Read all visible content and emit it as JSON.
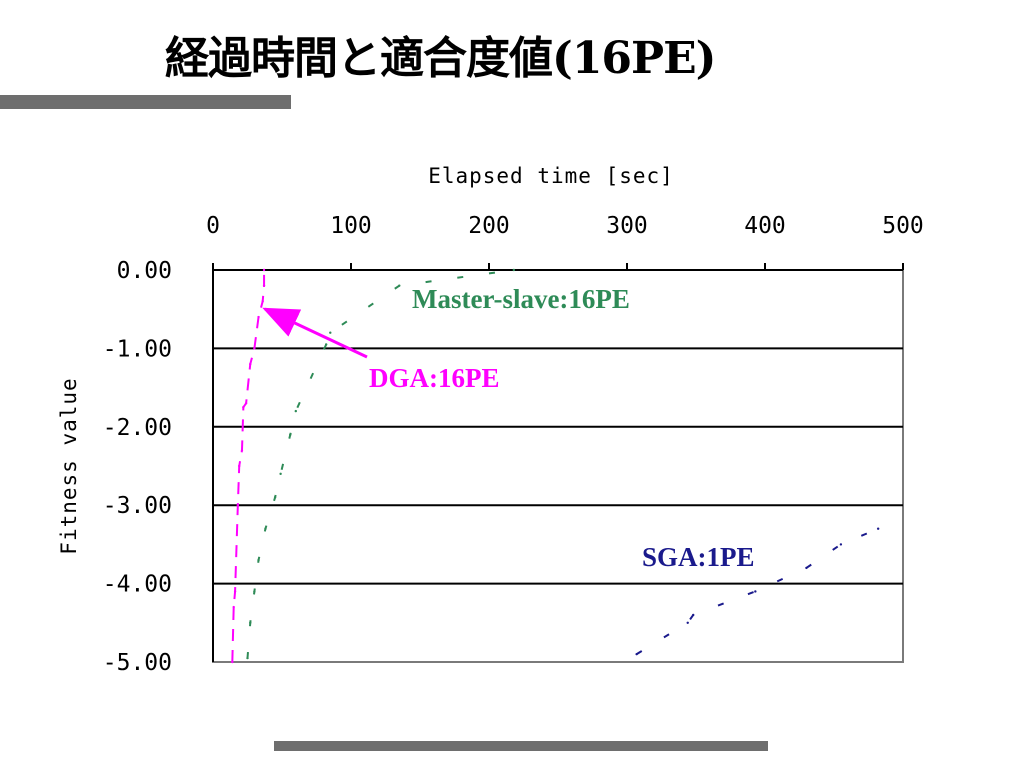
{
  "slide": {
    "title": "経過時間と適合度値(16PE)"
  },
  "chart_data": {
    "type": "line",
    "xlabel": "Elapsed time [sec]",
    "ylabel": "Fitness value",
    "xlim": [
      0,
      500
    ],
    "ylim": [
      -5.0,
      0.0
    ],
    "x_axis_position": "top",
    "x_ticks": [
      "0",
      "100",
      "200",
      "300",
      "400",
      "500"
    ],
    "y_ticks": [
      "0.00",
      "-1.00",
      "-2.00",
      "-3.00",
      "-4.00",
      "-5.00"
    ],
    "grid": "horizontal",
    "colors": {
      "dga": "#ff00ff",
      "master_slave": "#2e8b57",
      "sga": "#1a1a8c",
      "grid": "#000000",
      "bars": "#6e6e6e"
    },
    "series": [
      {
        "name": "DGA:16PE",
        "color": "#ff00ff",
        "points": [
          [
            14,
            -5.0
          ],
          [
            15,
            -4.3
          ],
          [
            16,
            -4.1
          ],
          [
            18,
            -3.0
          ],
          [
            19,
            -2.5
          ],
          [
            21,
            -2.3
          ],
          [
            22,
            -1.75
          ],
          [
            24,
            -1.7
          ],
          [
            27,
            -1.2
          ],
          [
            30,
            -1.0
          ],
          [
            33,
            -0.6
          ],
          [
            36,
            -0.4
          ],
          [
            37,
            -0.2
          ],
          [
            37,
            0.0
          ]
        ]
      },
      {
        "name": "Master-slave:16PE",
        "color": "#2e8b57",
        "points": [
          [
            25,
            -4.95
          ],
          [
            27,
            -4.5
          ],
          [
            30,
            -4.1
          ],
          [
            33,
            -3.7
          ],
          [
            38,
            -3.3
          ],
          [
            45,
            -2.9
          ],
          [
            49,
            -2.6
          ],
          [
            56,
            -2.1
          ],
          [
            60,
            -1.8
          ],
          [
            82,
            -0.95
          ],
          [
            85,
            -0.8
          ],
          [
            135,
            -0.2
          ],
          [
            218,
            0.0
          ]
        ]
      },
      {
        "name": "SGA:1PE",
        "color": "#1a1a8c",
        "points": [
          [
            307,
            -4.9
          ],
          [
            344,
            -4.5
          ],
          [
            348,
            -4.4
          ],
          [
            393,
            -4.1
          ],
          [
            430,
            -3.8
          ],
          [
            455,
            -3.5
          ],
          [
            482,
            -3.3
          ]
        ]
      }
    ],
    "annotations": [
      {
        "text": "Master-slave:16PE",
        "series": "Master-slave:16PE"
      },
      {
        "text": "DGA:16PE",
        "series": "DGA:16PE",
        "arrow": true
      },
      {
        "text": "SGA:1PE",
        "series": "SGA:1PE"
      }
    ]
  }
}
